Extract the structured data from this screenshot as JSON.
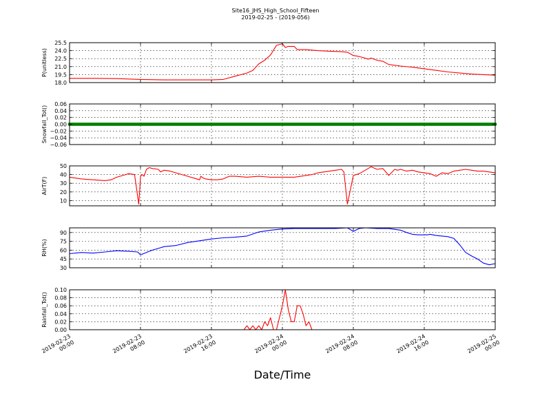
{
  "figure": {
    "title": "Site16_JHS_High_School_Fifteen",
    "subtitle": "2019-02-25 - (2019-056)",
    "xlabel": "Date/Time",
    "xticks": [
      [
        "2019-02-23",
        "00:00"
      ],
      [
        "2019-02-23",
        "08:00"
      ],
      [
        "2019-02-23",
        "16:00"
      ],
      [
        "2019-02-24",
        "00:00"
      ],
      [
        "2019-02-24",
        "08:00"
      ],
      [
        "2019-02-24",
        "16:00"
      ],
      [
        "2019-02-25",
        "00:00"
      ]
    ],
    "colors": {
      "red": "#ff0000",
      "green": "#008000",
      "blue": "#0000ff",
      "axes": "#000000",
      "grid": "#000000"
    }
  },
  "chart_data": [
    {
      "type": "line",
      "ylabel": "P(unitless)",
      "ylim": [
        18.0,
        25.5
      ],
      "yticks": [
        "18.0",
        "19.5",
        "21.0",
        "22.5",
        "24.0",
        "25.5"
      ],
      "grid": true,
      "series": [
        {
          "color": "#ff0000",
          "x": [
            0,
            4,
            8,
            12,
            16,
            20,
            24,
            26,
            28,
            30,
            31,
            32,
            33,
            34,
            35,
            36,
            36.5,
            37,
            38,
            38.5,
            39,
            39.5,
            40,
            41,
            42,
            44,
            46,
            47,
            48,
            49,
            50,
            50.5,
            51,
            52,
            53,
            54,
            56,
            58,
            60,
            62,
            64,
            66,
            68,
            70,
            72
          ],
          "y": [
            18.8,
            18.8,
            18.75,
            18.6,
            18.5,
            18.5,
            18.5,
            18.6,
            19.2,
            19.8,
            20.3,
            21.5,
            22.2,
            23.2,
            25.0,
            25.3,
            24.6,
            24.8,
            24.8,
            24.2,
            24.2,
            24.2,
            24.2,
            24.1,
            24.0,
            23.9,
            23.8,
            23.7,
            23.1,
            22.9,
            22.6,
            22.4,
            22.6,
            22.2,
            22.0,
            21.4,
            21.1,
            20.9,
            20.6,
            20.3,
            20.0,
            19.8,
            19.6,
            19.5,
            19.4
          ]
        }
      ]
    },
    {
      "type": "scatter",
      "ylabel": "Snowfall_Tot()",
      "ylim": [
        -0.06,
        0.06
      ],
      "yticks": [
        "−0.06",
        "−0.04",
        "−0.02",
        "0.00",
        "0.02",
        "0.04",
        "0.06"
      ],
      "grid": true,
      "series": [
        {
          "color": "#008000",
          "constant": 0.0,
          "x_range": [
            0,
            72
          ],
          "points_per_hour": 4
        }
      ]
    },
    {
      "type": "line",
      "ylabel": "AirT(F)",
      "ylim": [
        4,
        50
      ],
      "yticks": [
        "10",
        "20",
        "30",
        "40",
        "50"
      ],
      "grid": true,
      "series": [
        {
          "color": "#ff0000",
          "x": [
            0,
            2,
            4,
            6,
            7,
            8,
            9,
            10,
            11,
            11.7,
            11.85,
            12.0,
            12.3,
            12.6,
            13,
            13.5,
            14,
            15,
            15.4,
            16,
            17,
            18,
            19,
            20,
            21,
            22,
            22.2,
            22.6,
            23,
            24,
            25,
            26,
            27,
            28,
            30,
            32,
            34,
            36,
            38,
            40,
            41,
            42,
            44,
            45,
            46,
            46.4,
            47,
            48,
            49,
            50,
            51,
            52,
            53,
            54,
            55,
            55.5,
            56,
            57,
            58,
            59,
            60,
            61,
            62,
            63,
            64,
            65,
            66,
            67,
            68,
            69,
            70,
            71,
            72
          ],
          "y": [
            37,
            35,
            34,
            33,
            34,
            37,
            39,
            41,
            40,
            6,
            20,
            38,
            40,
            38,
            46,
            48,
            47,
            46,
            43,
            45,
            44,
            42,
            40,
            38,
            36,
            34,
            38,
            36,
            35,
            34,
            34,
            35,
            38,
            38,
            37,
            38,
            37,
            37,
            37,
            39,
            40,
            42,
            44,
            45,
            46,
            43,
            6,
            39,
            41,
            45,
            49,
            46,
            47,
            39,
            46,
            45,
            46,
            44,
            45,
            43,
            42,
            41,
            38,
            42,
            41,
            44,
            45,
            46,
            45,
            44,
            44,
            43,
            42
          ]
        }
      ]
    },
    {
      "type": "line",
      "ylabel": "RH(%)",
      "ylim": [
        30,
        98
      ],
      "yticks": [
        "30",
        "45",
        "60",
        "75",
        "90"
      ],
      "grid": true,
      "series": [
        {
          "color": "#0000ff",
          "x": [
            0,
            2,
            4,
            6,
            8,
            10,
            11.5,
            12,
            13,
            14,
            15,
            16,
            18,
            20,
            22,
            24,
            26,
            28,
            30,
            32,
            34,
            36,
            38,
            40,
            45,
            47,
            48,
            49,
            50,
            52,
            54,
            56,
            57,
            58,
            59,
            60,
            60.5,
            61,
            62,
            63,
            64,
            65,
            66,
            67,
            68,
            69,
            70,
            71,
            72
          ],
          "y": [
            54,
            56,
            55,
            57,
            59,
            58,
            57,
            52,
            56,
            60,
            63,
            66,
            68,
            73,
            76,
            79,
            81,
            82,
            84,
            91,
            94,
            96,
            97,
            97,
            97,
            98,
            92,
            97,
            98,
            97,
            97,
            94,
            90,
            87,
            86,
            86,
            86,
            87,
            85,
            84,
            83,
            80,
            69,
            56,
            50,
            45,
            38,
            35,
            37
          ]
        }
      ]
    },
    {
      "type": "line",
      "ylabel": "Rainfall_Tot()",
      "ylim": [
        0.0,
        0.1
      ],
      "yticks": [
        "0.00",
        "0.02",
        "0.04",
        "0.06",
        "0.08",
        "0.10"
      ],
      "grid": true,
      "series": [
        {
          "color": "#ff0000",
          "x": [
            0,
            10,
            20,
            29.5,
            30,
            30.5,
            31,
            31.5,
            32,
            32.5,
            33,
            33.5,
            34,
            34.5,
            35,
            35.5,
            36,
            36.5,
            37,
            37.5,
            38,
            38.5,
            39,
            39.5,
            40,
            40.5,
            41,
            41.5,
            42,
            45,
            50,
            60,
            72
          ],
          "y": [
            0,
            0,
            0,
            0,
            0.01,
            0,
            0.01,
            0,
            0.01,
            0,
            0.02,
            0.01,
            0.03,
            0,
            0,
            0.03,
            0.06,
            0.1,
            0.05,
            0.02,
            0.02,
            0.06,
            0.06,
            0.04,
            0.01,
            0.02,
            0,
            0,
            0,
            0,
            0,
            0,
            0
          ]
        }
      ]
    }
  ]
}
